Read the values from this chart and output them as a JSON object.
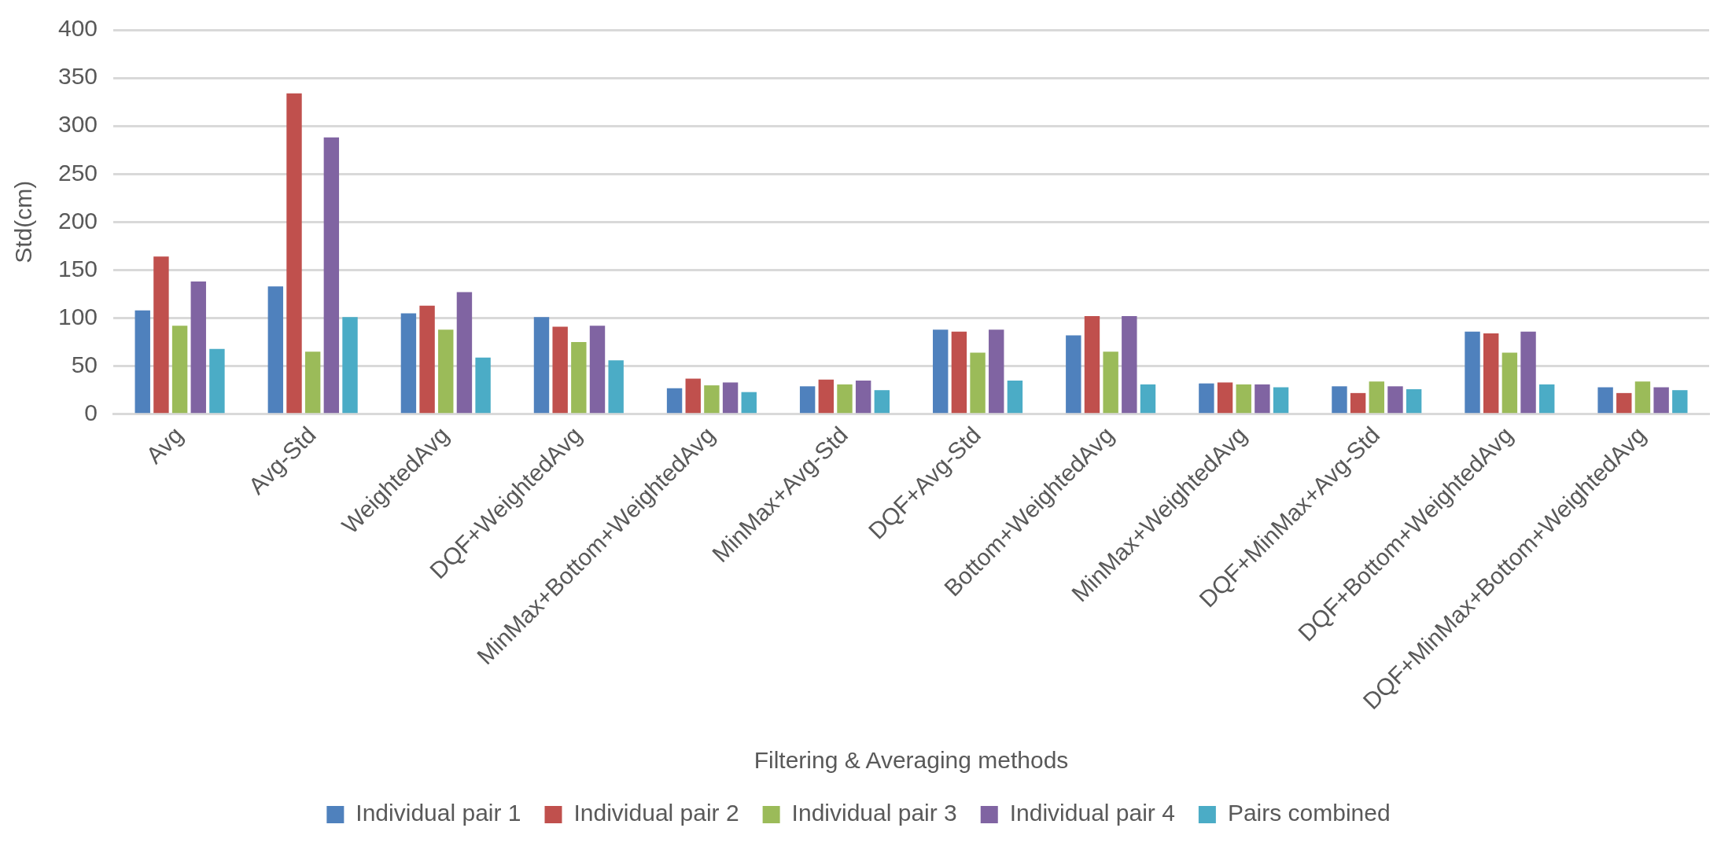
{
  "chart_data": {
    "type": "bar",
    "xlabel": "Filtering & Averaging methods",
    "ylabel": "Std(cm)",
    "categories": [
      "Avg",
      "Avg-Std",
      "WeightedAvg",
      "DQF+WeightedAvg",
      "MinMax+Bottom+WeightedAvg",
      "MinMax+Avg-Std",
      "DQF+Avg-Std",
      "Bottom+WeightedAvg",
      "MinMax+WeightedAvg",
      "DQF+MinMax+Avg-Std",
      "DQF+Bottom+WeightedAvg",
      "DQF+MinMax+Bottom+WeightedAvg"
    ],
    "series": [
      {
        "name": "Individual pair 1",
        "color": "#4f81bd",
        "values": [
          108,
          133,
          105,
          101,
          27,
          29,
          88,
          82,
          32,
          29,
          86,
          28
        ]
      },
      {
        "name": "Individual pair 2",
        "color": "#c0504d",
        "values": [
          164,
          334,
          113,
          91,
          37,
          36,
          86,
          102,
          33,
          22,
          84,
          22
        ]
      },
      {
        "name": "Individual pair 3",
        "color": "#9bbb59",
        "values": [
          92,
          65,
          88,
          75,
          30,
          31,
          64,
          65,
          31,
          34,
          64,
          34
        ]
      },
      {
        "name": "Individual pair 4",
        "color": "#8064a2",
        "values": [
          138,
          288,
          127,
          92,
          33,
          35,
          88,
          102,
          31,
          29,
          86,
          28
        ]
      },
      {
        "name": "Pairs combined",
        "color": "#4bacc6",
        "values": [
          68,
          101,
          59,
          56,
          23,
          25,
          35,
          31,
          28,
          26,
          31,
          25
        ]
      }
    ],
    "ylim": [
      0,
      400
    ],
    "yticks": [
      0,
      50,
      100,
      150,
      200,
      250,
      300,
      350,
      400
    ],
    "grid": "y",
    "legend": "bottom"
  }
}
